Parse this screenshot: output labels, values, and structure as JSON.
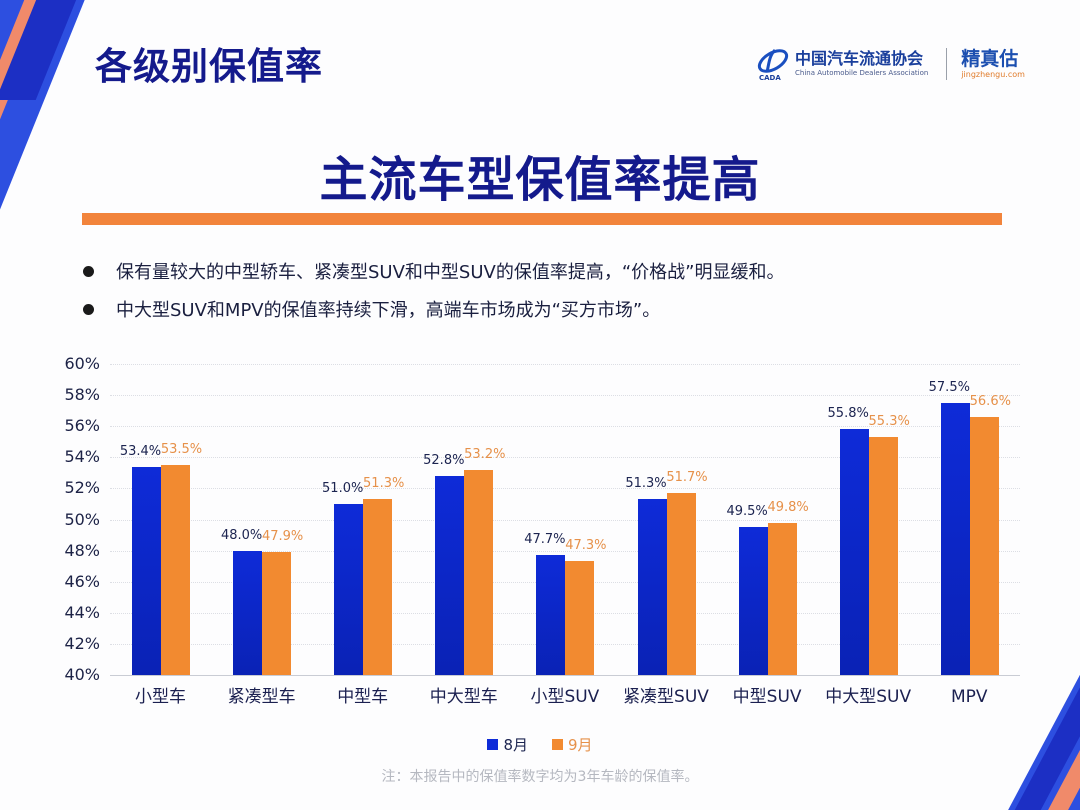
{
  "header": {
    "title": "各级别保值率",
    "logo": {
      "org_cn": "中国汽车流通协会",
      "org_en": "China Automobile Dealers Association",
      "mark_text": "CADA",
      "brand_cn": "精真估",
      "brand_url": "jingzhengu.com"
    }
  },
  "main": {
    "title": "主流车型保值率提高",
    "bullets": [
      "保有量较大的中型轿车、紧凑型SUV和中型SUV的保值率提高，“价格战”明显缓和。",
      "中大型SUV和MPV的保值率持续下滑，高端车市场成为“买方市场”。"
    ],
    "footnote": "注：本报告中的保值率数字均为3年车龄的保值率。"
  },
  "colors": {
    "series_aug": "#0e2bd8",
    "series_sep": "#f28a30",
    "title_navy": "#141a8c",
    "accent_orange": "#f2843c"
  },
  "chart_data": {
    "type": "bar",
    "title": "",
    "xlabel": "",
    "ylabel": "",
    "ylim": [
      40,
      60
    ],
    "yticks": [
      "60%",
      "58%",
      "56%",
      "54%",
      "52%",
      "50%",
      "48%",
      "46%",
      "44%",
      "42%",
      "40%"
    ],
    "grid": true,
    "legend_position": "bottom",
    "categories": [
      "小型车",
      "紧凑型车",
      "中型车",
      "中大型车",
      "小型SUV",
      "紧凑型SUV",
      "中型SUV",
      "中大型SUV",
      "MPV"
    ],
    "series": [
      {
        "name": "8月",
        "values": [
          53.4,
          48.0,
          51.0,
          52.8,
          47.7,
          51.3,
          49.5,
          55.8,
          57.5
        ],
        "labels": [
          "53.4%",
          "48.0%",
          "51.0%",
          "52.8%",
          "47.7%",
          "51.3%",
          "49.5%",
          "55.8%",
          "57.5%"
        ]
      },
      {
        "name": "9月",
        "values": [
          53.5,
          47.9,
          51.3,
          53.2,
          47.3,
          51.7,
          49.8,
          55.3,
          56.6
        ],
        "labels": [
          "53.5%",
          "47.9%",
          "51.3%",
          "53.2%",
          "47.3%",
          "51.7%",
          "49.8%",
          "55.3%",
          "56.6%"
        ]
      }
    ]
  }
}
